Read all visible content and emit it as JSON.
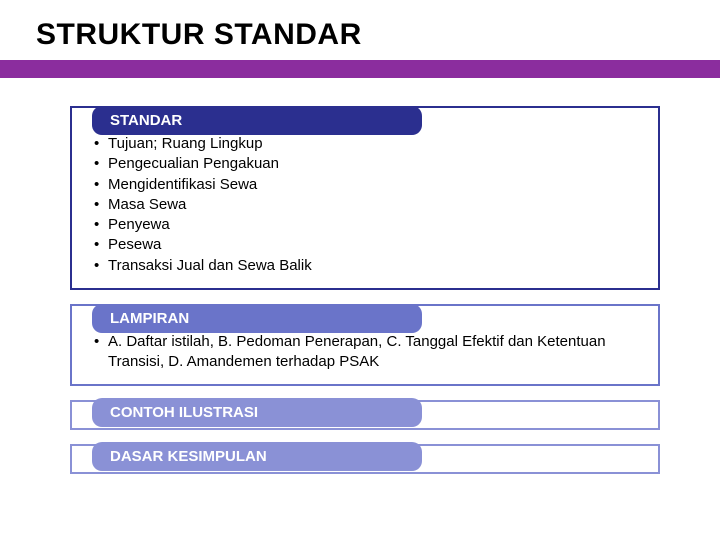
{
  "title": "STRUKTUR STANDAR",
  "colors": {
    "purple_bar": "#8b2d9e",
    "standar_border": "#2b2f8f",
    "standar_label_bg": "#2b2f8f",
    "lampiran_border": "#6a74c9",
    "lampiran_label_bg": "#6a74c9",
    "contoh_border": "#8a91d6",
    "contoh_label_bg": "#8a91d6",
    "dasar_border": "#8a91d6",
    "dasar_label_bg": "#8a91d6",
    "text": "#000000",
    "label_text": "#ffffff",
    "background": "#ffffff"
  },
  "typography": {
    "title_fontsize": 30,
    "title_weight": "bold",
    "label_fontsize": 15,
    "label_weight": "bold",
    "body_fontsize": 15,
    "font_family": "Arial"
  },
  "sections": {
    "standar": {
      "label": "STANDAR",
      "items": [
        "Tujuan; Ruang Lingkup",
        "Pengecualian Pengakuan",
        "Mengidentifikasi Sewa",
        "Masa Sewa",
        "Penyewa",
        "Pesewa",
        "Transaksi Jual dan Sewa Balik"
      ]
    },
    "lampiran": {
      "label": "LAMPIRAN",
      "text": "A. Daftar istilah, B. Pedoman Penerapan, C. Tanggal Efektif dan Ketentuan Transisi, D. Amandemen terhadap PSAK"
    },
    "contoh": {
      "label": "CONTOH ILUSTRASI"
    },
    "dasar": {
      "label": "DASAR KESIMPULAN"
    }
  }
}
